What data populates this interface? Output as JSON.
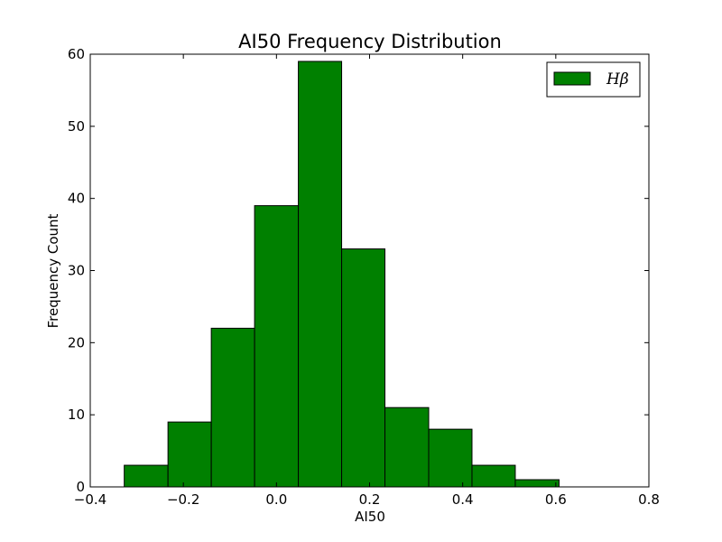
{
  "chart_data": {
    "type": "bar",
    "title": "AI50 Frequency Distribution",
    "xlabel": "AI50",
    "ylabel": "Frequency Count",
    "xlim": [
      -0.4,
      0.8
    ],
    "ylim": [
      0,
      60
    ],
    "xticks": [
      -0.4,
      -0.2,
      0.0,
      0.2,
      0.4,
      0.6,
      0.8
    ],
    "xtick_labels": [
      "−0.4",
      "−0.2",
      "0.0",
      "0.2",
      "0.4",
      "0.6",
      "0.8"
    ],
    "yticks": [
      0,
      10,
      20,
      30,
      40,
      50,
      60
    ],
    "ytick_labels": [
      "0",
      "10",
      "20",
      "30",
      "40",
      "50",
      "60"
    ],
    "bin_edges": [
      -0.327,
      -0.233,
      -0.14,
      -0.047,
      0.047,
      0.14,
      0.233,
      0.327,
      0.42,
      0.513,
      0.607
    ],
    "series": [
      {
        "name": "Hβ",
        "color": "#008000",
        "values": [
          3,
          9,
          22,
          39,
          59,
          33,
          11,
          8,
          3,
          1
        ]
      }
    ],
    "grid": false,
    "legend_position": "top-right"
  }
}
